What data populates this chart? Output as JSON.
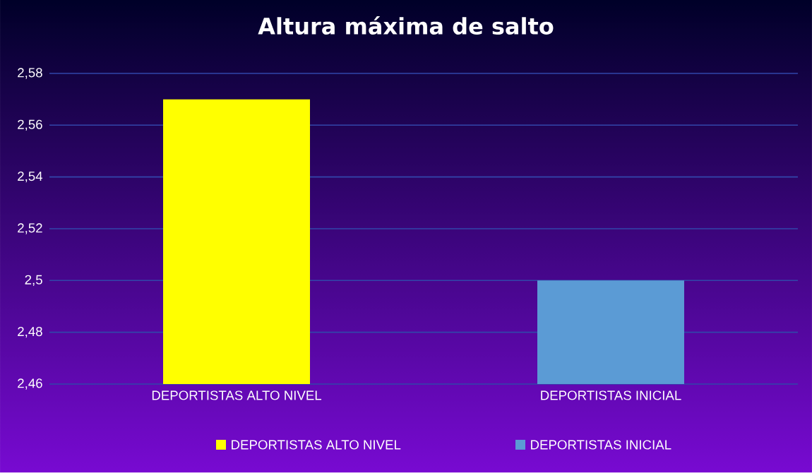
{
  "chart_data": {
    "type": "bar",
    "title": "Altura máxima  de salto",
    "categories": [
      "DEPORTISTAS ALTO NIVEL",
      "DEPORTISTAS INICIAL"
    ],
    "series": [
      {
        "name": "DEPORTISTAS ALTO NIVEL",
        "color": "#ffff00",
        "values": [
          2.57,
          null
        ]
      },
      {
        "name": "DEPORTISTAS INICIAL",
        "color": "#5b9bd5",
        "values": [
          null,
          2.5
        ]
      }
    ],
    "ylim": [
      2.46,
      2.58
    ],
    "yticks": [
      {
        "value": 2.46,
        "label": "2,46"
      },
      {
        "value": 2.48,
        "label": "2,48"
      },
      {
        "value": 2.5,
        "label": "2,5"
      },
      {
        "value": 2.52,
        "label": "2,52"
      },
      {
        "value": 2.54,
        "label": "2,54"
      },
      {
        "value": 2.56,
        "label": "2,56"
      },
      {
        "value": 2.58,
        "label": "2,58"
      }
    ],
    "grid": "y",
    "legend": "bottom"
  }
}
